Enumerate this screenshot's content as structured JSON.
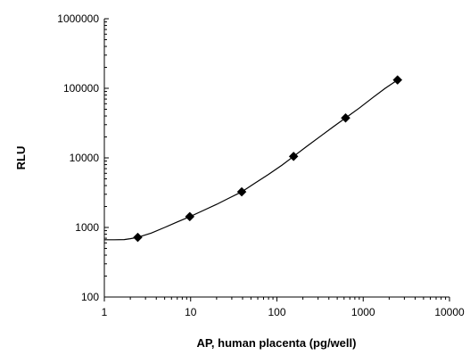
{
  "chart_data": {
    "type": "scatter",
    "title": "",
    "xlabel": "AP, human placenta (pg/well)",
    "ylabel": "RLU",
    "x_scale": "log",
    "y_scale": "log",
    "xlim": [
      1,
      10000
    ],
    "ylim": [
      100,
      1000000
    ],
    "x_tick_labels": [
      "1",
      "10",
      "100",
      "1000",
      "10000"
    ],
    "y_tick_labels": [
      "100",
      "1000",
      "10000",
      "100000",
      "1000000"
    ],
    "grid": false,
    "legend": "none",
    "series": [
      {
        "marker": "diamond",
        "color": "#000000",
        "x": [
          2.44,
          9.77,
          39.1,
          156,
          625,
          2500
        ],
        "y": [
          720,
          1430,
          3250,
          10500,
          37500,
          132000
        ]
      }
    ],
    "fit_curve": {
      "color": "#000000",
      "x": [
        1,
        1.3,
        1.7,
        2.0,
        2.44,
        3.5,
        5,
        7,
        9.77,
        14,
        20,
        28,
        39.1,
        55,
        80,
        115,
        156,
        220,
        320,
        450,
        625,
        900,
        1300,
        1800,
        2500
      ],
      "y": [
        665,
        665,
        670,
        690,
        720,
        830,
        1000,
        1200,
        1430,
        1750,
        2150,
        2650,
        3250,
        4300,
        5800,
        7900,
        10500,
        14500,
        20500,
        28000,
        37500,
        52000,
        74000,
        100000,
        132000
      ]
    }
  }
}
